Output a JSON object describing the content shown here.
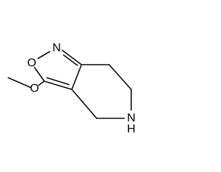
{
  "atoms": [
    {
      "label": "N"
    },
    {
      "label": "O"
    },
    {
      "label": "O"
    },
    {
      "label": "N"
    },
    {
      "label": "H"
    }
  ]
}
